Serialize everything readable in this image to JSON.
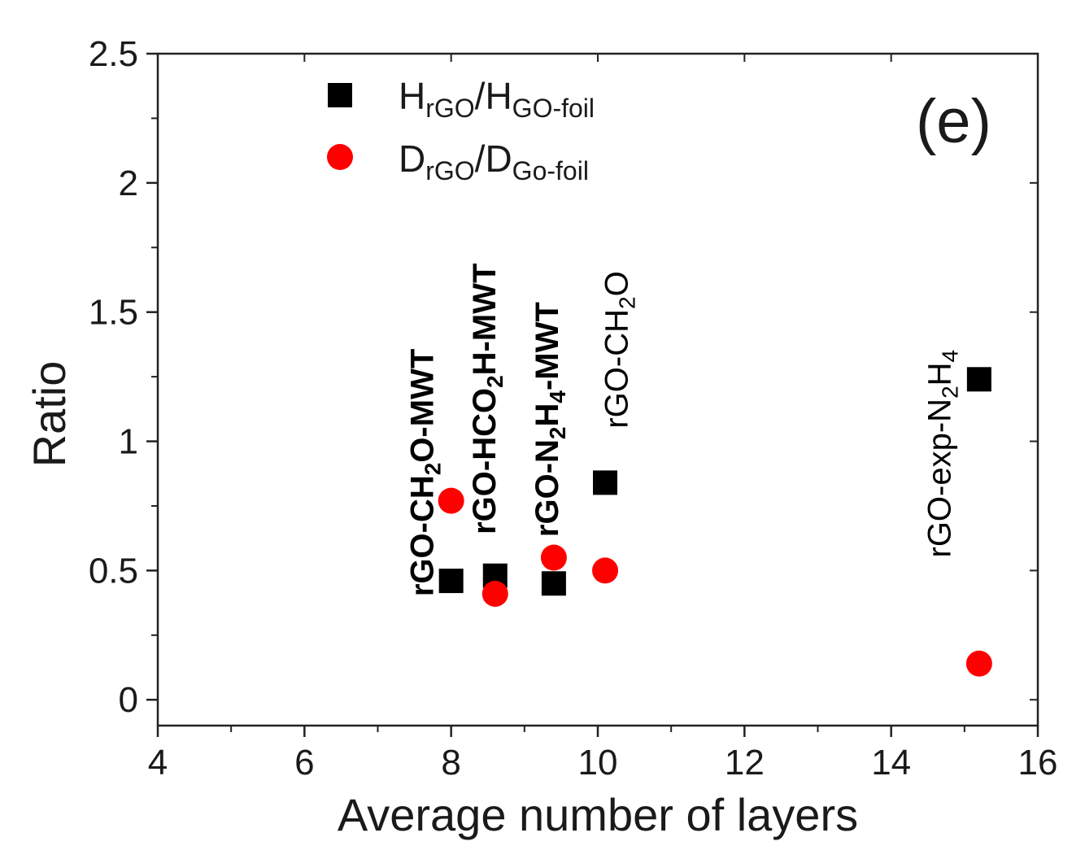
{
  "chart_data": {
    "type": "scatter",
    "title": "",
    "panel_label": "(e)",
    "xlabel": "Average number of layers",
    "ylabel": "Ratio",
    "xlim": [
      4,
      16
    ],
    "ylim": [
      -0.1,
      2.5
    ],
    "xticks": [
      4,
      6,
      8,
      10,
      12,
      14,
      16
    ],
    "xtick_labels": [
      "4",
      "6",
      "8",
      "10",
      "12",
      "14",
      "16"
    ],
    "yticks": [
      0,
      0.5,
      1,
      1.5,
      2,
      2.5
    ],
    "ytick_labels": [
      "0",
      "0.5",
      "1",
      "1.5",
      "2",
      "2.5"
    ],
    "legend_position": "top-left",
    "series": [
      {
        "name": "HrGO/HGO-foil",
        "legend_main": "H",
        "legend_sub1": "rGO",
        "legend_slash": "/H",
        "legend_sub2": "GO-foil",
        "marker": "square",
        "color": "#000000",
        "points": [
          {
            "x": 8.0,
            "y": 0.46
          },
          {
            "x": 8.6,
            "y": 0.48
          },
          {
            "x": 9.4,
            "y": 0.45
          },
          {
            "x": 10.1,
            "y": 0.84
          },
          {
            "x": 15.2,
            "y": 1.24
          }
        ]
      },
      {
        "name": "DrGO/DGo-foil",
        "legend_main": "D",
        "legend_sub1": "rGO",
        "legend_slash": "/D",
        "legend_sub2": "Go-foil",
        "marker": "circle",
        "color": "#ff0000",
        "points": [
          {
            "x": 8.0,
            "y": 0.77
          },
          {
            "x": 8.6,
            "y": 0.41
          },
          {
            "x": 9.4,
            "y": 0.55
          },
          {
            "x": 10.1,
            "y": 0.5
          },
          {
            "x": 15.2,
            "y": 0.14
          }
        ]
      }
    ],
    "annotations": [
      {
        "id": "rgo-ch2o-mwt",
        "x": 7.6,
        "y": 0.4,
        "bold": true,
        "parts": [
          {
            "t": "rGO-CH"
          },
          {
            "t": "2",
            "sub": true
          },
          {
            "t": "O-MWT"
          }
        ]
      },
      {
        "id": "rgo-hco2h-mwt",
        "x": 8.45,
        "y": 0.64,
        "bold": true,
        "parts": [
          {
            "t": "rGO-HCO"
          },
          {
            "t": "2",
            "sub": true
          },
          {
            "t": "H-MWT"
          }
        ]
      },
      {
        "id": "rgo-n2h4-mwt",
        "x": 9.3,
        "y": 0.63,
        "bold": true,
        "parts": [
          {
            "t": "rGO-N"
          },
          {
            "t": "2",
            "sub": true
          },
          {
            "t": "H"
          },
          {
            "t": "4",
            "sub": true
          },
          {
            "t": "-MWT"
          }
        ]
      },
      {
        "id": "rgo-ch2o",
        "x": 10.25,
        "y": 1.05,
        "bold": false,
        "parts": [
          {
            "t": "rGO-CH"
          },
          {
            "t": "2",
            "sub": true
          },
          {
            "t": "O"
          }
        ]
      },
      {
        "id": "rgo-exp-n2h4",
        "x": 14.65,
        "y": 0.55,
        "bold": false,
        "parts": [
          {
            "t": "rGO-exp-N"
          },
          {
            "t": "2",
            "sub": true
          },
          {
            "t": "H"
          },
          {
            "t": "4",
            "sub": true
          }
        ]
      }
    ]
  }
}
